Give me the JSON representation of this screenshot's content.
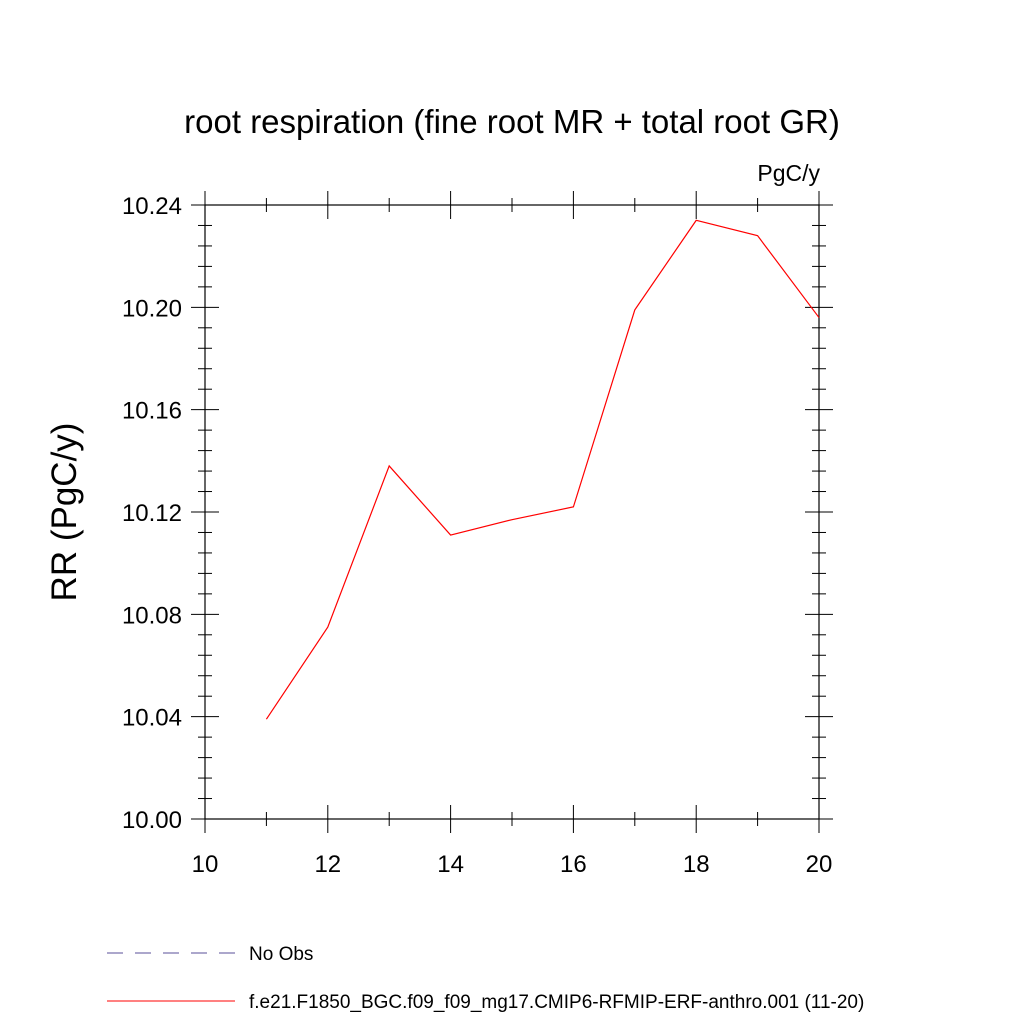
{
  "chart_data": {
    "type": "line",
    "title": "root respiration (fine root MR + total root GR)",
    "units_label": "PgC/y",
    "ylabel": "RR  (PgC/y)",
    "xlabel": "",
    "xlim": [
      10,
      20
    ],
    "ylim": [
      10.0,
      10.24
    ],
    "x_ticks": [
      "10",
      "12",
      "14",
      "16",
      "18",
      "20"
    ],
    "y_ticks": [
      "10.00",
      "10.04",
      "10.08",
      "10.12",
      "10.16",
      "10.20",
      "10.24"
    ],
    "grid": false,
    "legend_position": "bottom",
    "series": [
      {
        "name": "f.e21.F1850_BGC.f09_f09_mg17.CMIP6-RFMIP-ERF-anthro.001 (11-20)",
        "color": "#ff0000",
        "x": [
          11,
          12,
          13,
          14,
          15,
          16,
          17,
          18,
          19,
          20
        ],
        "y": [
          10.039,
          10.075,
          10.138,
          10.111,
          10.117,
          10.122,
          10.199,
          10.234,
          10.228,
          10.196
        ]
      }
    ],
    "legend": [
      {
        "label": "No Obs",
        "color": "#5a4f9a",
        "style": "dashed"
      },
      {
        "label": "f.e21.F1850_BGC.f09_f09_mg17.CMIP6-RFMIP-ERF-anthro.001 (11-20)",
        "color": "#ff0000",
        "style": "solid"
      }
    ]
  }
}
